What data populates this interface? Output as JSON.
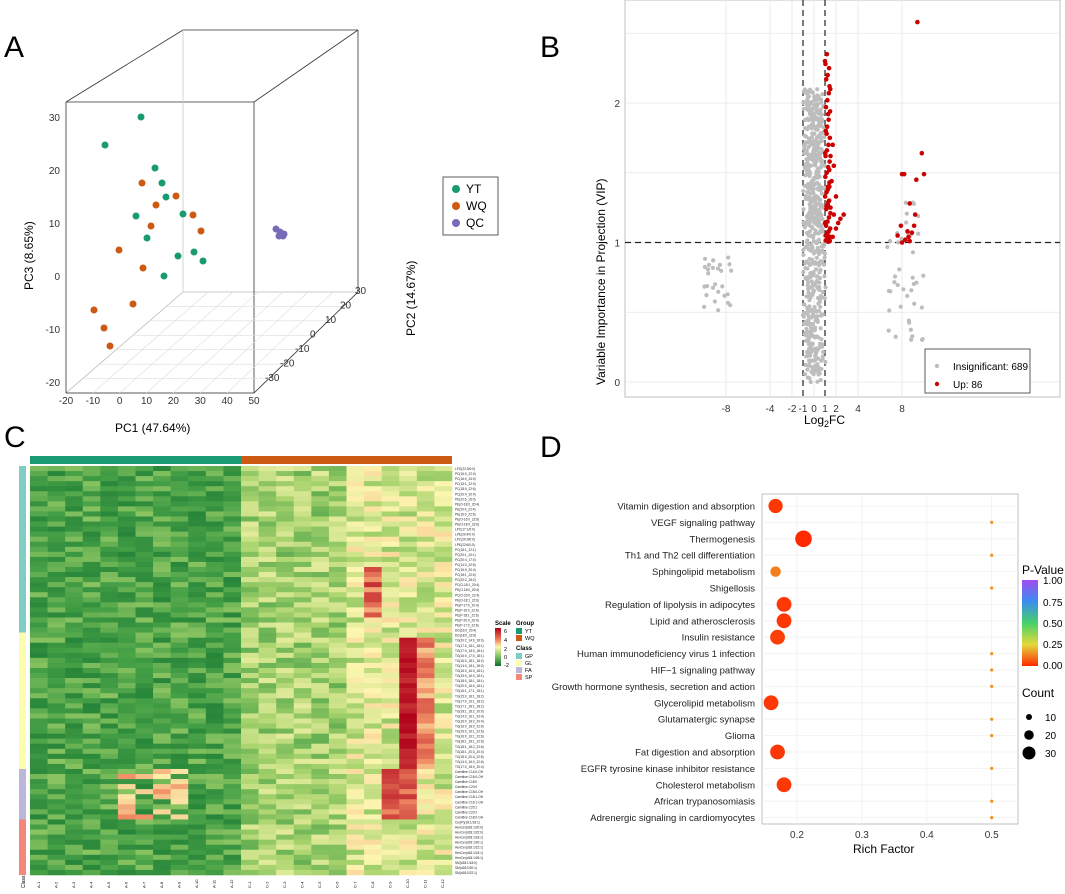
{
  "panels": {
    "a": "A",
    "b": "B",
    "c": "C",
    "d": "D"
  },
  "colors": {
    "yt": "#1a9a73",
    "wq": "#cc5a12",
    "qc": "#7a6bb8",
    "up": "#cc0000",
    "insig": "#bdbdbd"
  },
  "chart_data": [
    {
      "type": "scatter",
      "id": "pca3d",
      "title": "",
      "xlabel": "PC1 (47.64%)",
      "ylabel": "PC2 (14.67%)",
      "zlabel": "PC3 (8.65%)",
      "x_ticks": [
        "-20",
        "-10",
        "0",
        "10",
        "20",
        "30",
        "40",
        "50"
      ],
      "y_ticks": [
        "-30",
        "-20",
        "-10",
        "0",
        "10",
        "20",
        "30"
      ],
      "z_ticks": [
        "-20",
        "-10",
        "0",
        "10",
        "20",
        "30"
      ],
      "legend": [
        {
          "label": "YT",
          "color": "#1a9a73"
        },
        {
          "label": "WQ",
          "color": "#cc5a12"
        },
        {
          "label": "QC",
          "color": "#7a6bb8"
        }
      ],
      "series": [
        {
          "name": "YT",
          "points": [
            [
              141,
              117
            ],
            [
              105,
              145
            ],
            [
              155,
              168
            ],
            [
              162,
              183
            ],
            [
              136,
              216
            ],
            [
              166,
              197
            ],
            [
              183,
              214
            ],
            [
              147,
              238
            ],
            [
              178,
              256
            ],
            [
              194,
              252
            ],
            [
              203,
              261
            ],
            [
              164,
              276
            ]
          ]
        },
        {
          "name": "WQ",
          "points": [
            [
              142,
              183
            ],
            [
              176,
              196
            ],
            [
              156,
              205
            ],
            [
              193,
              215
            ],
            [
              151,
              226
            ],
            [
              201,
              231
            ],
            [
              119,
              250
            ],
            [
              143,
              268
            ],
            [
              133,
              304
            ],
            [
              94,
              310
            ],
            [
              104,
              328
            ],
            [
              110,
              346
            ]
          ]
        },
        {
          "name": "QC",
          "points": [
            [
              276,
              229
            ],
            [
              280,
              232
            ],
            [
              284,
              234
            ],
            [
              279,
              236
            ],
            [
              283,
              236
            ]
          ]
        }
      ]
    },
    {
      "type": "scatter",
      "id": "volcano",
      "title": "",
      "xlabel": "Log2FC",
      "ylabel": "Variable Importance in Projection (VIP)",
      "x_ticks": [
        "-8",
        "-4",
        "-2",
        "-1",
        "0",
        "1",
        "2",
        "4",
        "8"
      ],
      "y_ticks": [
        "0",
        "1",
        "2"
      ],
      "thresholds": {
        "vip": 1,
        "log2fc": [
          -1,
          1
        ]
      },
      "legend": [
        {
          "label": "Insignificant: 689",
          "color": "#bdbdbd"
        },
        {
          "label": "Up: 86",
          "color": "#cc0000"
        }
      ],
      "counts": {
        "insignificant": 689,
        "up": 86
      },
      "up_points": [
        [
          9.4,
          2.58
        ],
        [
          9.8,
          1.64
        ],
        [
          10.0,
          1.49
        ],
        [
          8.0,
          1.49
        ],
        [
          8.2,
          1.49
        ],
        [
          9.3,
          1.45
        ],
        [
          8.7,
          1.28
        ],
        [
          9.2,
          1.2
        ],
        [
          9.1,
          1.12
        ],
        [
          8.9,
          1.07
        ],
        [
          8.5,
          1.08
        ],
        [
          8.6,
          1.04
        ],
        [
          8.3,
          1.02
        ],
        [
          8.7,
          1.01
        ],
        [
          7.6,
          1.05
        ],
        [
          7.9,
          1.12
        ],
        [
          8.0,
          1.0
        ],
        [
          2.7,
          1.2
        ],
        [
          2.4,
          1.17
        ],
        [
          2.2,
          1.14
        ],
        [
          2.0,
          1.1
        ],
        [
          2.0,
          1.33
        ],
        [
          1.8,
          1.55
        ],
        [
          1.6,
          1.44
        ],
        [
          1.7,
          1.7
        ],
        [
          1.5,
          1.62
        ],
        [
          1.4,
          1.4
        ],
        [
          1.3,
          1.29
        ],
        [
          1.8,
          1.2
        ],
        [
          1.5,
          1.25
        ],
        [
          1.2,
          1.07
        ],
        [
          1.1,
          1.05
        ],
        [
          1.2,
          1.02
        ],
        [
          1.4,
          1.02
        ],
        [
          1.7,
          1.04
        ]
      ],
      "up_column_vips": [
        2.3,
        2.25,
        2.2,
        2.17,
        2.1,
        2.07,
        2.02,
        1.97,
        1.94,
        1.88,
        1.83,
        1.8,
        1.75,
        1.7,
        1.66,
        1.62,
        1.58,
        1.54,
        1.5,
        1.47,
        1.43,
        1.4,
        1.36,
        1.33,
        1.3,
        1.27,
        1.24,
        1.21,
        1.18,
        1.15,
        1.12,
        1.1,
        1.08,
        1.06,
        1.05,
        1.04,
        1.03,
        1.02,
        1.015,
        1.01,
        1.005,
        2.35,
        2.28,
        2.12,
        1.92,
        1.78,
        1.64,
        1.52,
        1.38,
        1.26,
        1.14
      ]
    },
    {
      "type": "heatmap",
      "id": "heatmap",
      "title": "",
      "groups": [
        {
          "name": "YT",
          "color": "#1a9a73",
          "columns": 12
        },
        {
          "name": "WQ",
          "color": "#cc5a12",
          "columns": 12
        }
      ],
      "col_labels": [
        "A-1",
        "A-2",
        "A-3",
        "A-4",
        "A-5",
        "A-6",
        "A-7",
        "A-8",
        "A-9",
        "A-10",
        "A-11",
        "A-12",
        "C-1",
        "C-2",
        "C-3",
        "C-4",
        "C-5",
        "C-6",
        "C-7",
        "C-8",
        "C-9",
        "C-10",
        "C-11",
        "C-12"
      ],
      "class_label": "Class",
      "legend": {
        "scale_title": "Scale",
        "scale_ticks": [
          "6",
          "4",
          "2",
          "0",
          "-2"
        ],
        "group_title": "Group",
        "group_entries": [
          "YT",
          "WQ"
        ],
        "class_title": "Class",
        "class_entries": [
          {
            "label": "GP",
            "color": "#7fcdc5"
          },
          {
            "label": "GL",
            "color": "#fdfdb0"
          },
          {
            "label": "FA",
            "color": "#bcb6d9"
          },
          {
            "label": "SP",
            "color": "#f4877a"
          }
        ]
      },
      "row_classes": [
        {
          "name": "GP",
          "rows": 33
        },
        {
          "name": "GL",
          "rows": 27
        },
        {
          "name": "FA",
          "rows": 10
        },
        {
          "name": "SP",
          "rows": 11
        }
      ],
      "row_labels": [
        "LPG(22:0/0:0)",
        "PC(16:0_22:0)",
        "PC(16:0_24:0)",
        "PC(15:1_22:0)",
        "PC(18:0_22:6)",
        "PC(20:4_20:4)",
        "PE(22:6_16:0)",
        "PE(O-18:0_20:4)",
        "PE(20:4_22:4)",
        "PE(16:0_22:6)",
        "PE(O-16:0_22:6)",
        "PE(O-18:0_22:6)",
        "LPC(17:1/0:0)",
        "LPE(20:4/0:0)",
        "LPC(20:0/0:0)",
        "LPE(22:6/0:0)",
        "PC(18:1_22:1)",
        "PC(20:1_20:1)",
        "PC(20:4_17:0)",
        "PC(14:0_22:6)",
        "PC(16:0_20:4)",
        "PC(18:1_22:6)",
        "PC(20:2_18:2)",
        "PC(O-18:1_20:4)",
        "PE(O-18:0_20:4)",
        "PC(O-20:0_22:4)",
        "PE(O-18:1_22:6)",
        "PE(P-17:0_20:4)",
        "PE(P-16:0_22:6)",
        "PE(P-18:1_22:6)",
        "PE(P-20:0_20:4)",
        "PE(P-17:0_22:6)",
        "DG(16:0_20:4)",
        "DG(18:0_22:6)",
        "TG(20:2_14:0_16:0)",
        "TG(17:0_18:1_18:1)",
        "TG(17:0_18:0_18:1)",
        "TG(16:0_17:0_18:1)",
        "TG(16:0_18:1_18:2)",
        "TG(14:0_18:1_18:2)",
        "TG(16:0_16:0_18:1)",
        "TG(15:0_16:0_18:1)",
        "TG(18:0_18:1_18:1)",
        "TG(20:0_16:0_18:1)",
        "TG(16:1_17:1_18:1)",
        "TG(15:0_18:1_18:2)",
        "TG(17:0_16:1_18:2)",
        "TG(17:1_18:1_18:2)",
        "TG(18:1_18:2_20:0)",
        "TG(14:0_16:1_20:4)",
        "TG(16:0_18:2_20:4)",
        "TG(16:0_18:0_22:6)",
        "TG(15:0_16:1_22:6)",
        "TG(16:0_16:1_22:6)",
        "TG(18:1_18:1_22:6)",
        "TG(18:1_18:2_22:6)",
        "TG(18:1_20:3_20:4)",
        "TG(18:0_20:4_22:6)",
        "TG(14:0_16:0_22:6)",
        "TG(17:0_18:0_20:4)",
        "Carnitine C14:0-OH",
        "Carnitine C16:0-OH",
        "Carnitine C18:0",
        "Carnitine C20:0",
        "Carnitine C18:0-OH",
        "Carnitine C18:1-OH",
        "Carnitine C16:1-OH",
        "Carnitine C20:1",
        "Carnitine C20:2",
        "Carnitine C18:0-OH",
        "Cer(P)(18:1/18:1)",
        "HexCer(d18:1/20:0)",
        "HexCer(d18:1/22:0)",
        "HexCer(d18:1/18:1)",
        "HexCer(d18:1/20:1)",
        "HexCer(d18:1/22:1)",
        "HexCer(d18:1/24:1)",
        "HexCer(d18:1/26:1)",
        "SM(d18:1/18:0)",
        "SM(d18:0/20:1)",
        "SM(d18:0/22:1)"
      ]
    },
    {
      "type": "scatter",
      "id": "kegg_bubble",
      "title": "",
      "xlabel": "Rich Factor",
      "ylabel": "",
      "x_ticks": [
        "0.2",
        "0.3",
        "0.4",
        "0.5"
      ],
      "color_legend": {
        "title": "P-Value",
        "ticks": [
          "1.00",
          "0.75",
          "0.50",
          "0.25",
          "0.00"
        ]
      },
      "size_legend": {
        "title": "Count",
        "entries": [
          "10",
          "20",
          "30"
        ]
      },
      "pathways": [
        {
          "name": "Vitamin digestion and absorption",
          "rich_factor": 0.167,
          "count": 20,
          "pvalue": 0.02
        },
        {
          "name": "VEGF signaling pathway",
          "rich_factor": 0.5,
          "count": 1,
          "pvalue": 0.15
        },
        {
          "name": "Thermogenesis",
          "rich_factor": 0.21,
          "count": 30,
          "pvalue": 0.0
        },
        {
          "name": "Th1 and Th2 cell differentiation",
          "rich_factor": 0.5,
          "count": 1,
          "pvalue": 0.15
        },
        {
          "name": "Sphingolipid metabolism",
          "rich_factor": 0.167,
          "count": 8,
          "pvalue": 0.12
        },
        {
          "name": "Shigellosis",
          "rich_factor": 0.5,
          "count": 1,
          "pvalue": 0.15
        },
        {
          "name": "Regulation of lipolysis in adipocytes",
          "rich_factor": 0.18,
          "count": 22,
          "pvalue": 0.02
        },
        {
          "name": "Lipid and atherosclerosis",
          "rich_factor": 0.18,
          "count": 22,
          "pvalue": 0.02
        },
        {
          "name": "Insulin resistance",
          "rich_factor": 0.17,
          "count": 22,
          "pvalue": 0.03
        },
        {
          "name": "Human immunodeficiency virus 1 infection",
          "rich_factor": 0.5,
          "count": 1,
          "pvalue": 0.15
        },
        {
          "name": "HIF−1 signaling pathway",
          "rich_factor": 0.5,
          "count": 1,
          "pvalue": 0.15
        },
        {
          "name": "Growth hormone synthesis, secretion and action",
          "rich_factor": 0.5,
          "count": 1,
          "pvalue": 0.15
        },
        {
          "name": "Glycerolipid metabolism",
          "rich_factor": 0.16,
          "count": 22,
          "pvalue": 0.02
        },
        {
          "name": "Glutamatergic synapse",
          "rich_factor": 0.5,
          "count": 1,
          "pvalue": 0.15
        },
        {
          "name": "Glioma",
          "rich_factor": 0.5,
          "count": 1,
          "pvalue": 0.15
        },
        {
          "name": "Fat digestion and absorption",
          "rich_factor": 0.17,
          "count": 22,
          "pvalue": 0.02
        },
        {
          "name": "EGFR tyrosine kinase inhibitor resistance",
          "rich_factor": 0.5,
          "count": 1,
          "pvalue": 0.15
        },
        {
          "name": "Cholesterol metabolism",
          "rich_factor": 0.18,
          "count": 22,
          "pvalue": 0.02
        },
        {
          "name": "African trypanosomiasis",
          "rich_factor": 0.5,
          "count": 1,
          "pvalue": 0.15
        },
        {
          "name": "Adrenergic signaling in cardiomyocytes",
          "rich_factor": 0.5,
          "count": 1,
          "pvalue": 0.15
        }
      ]
    }
  ]
}
